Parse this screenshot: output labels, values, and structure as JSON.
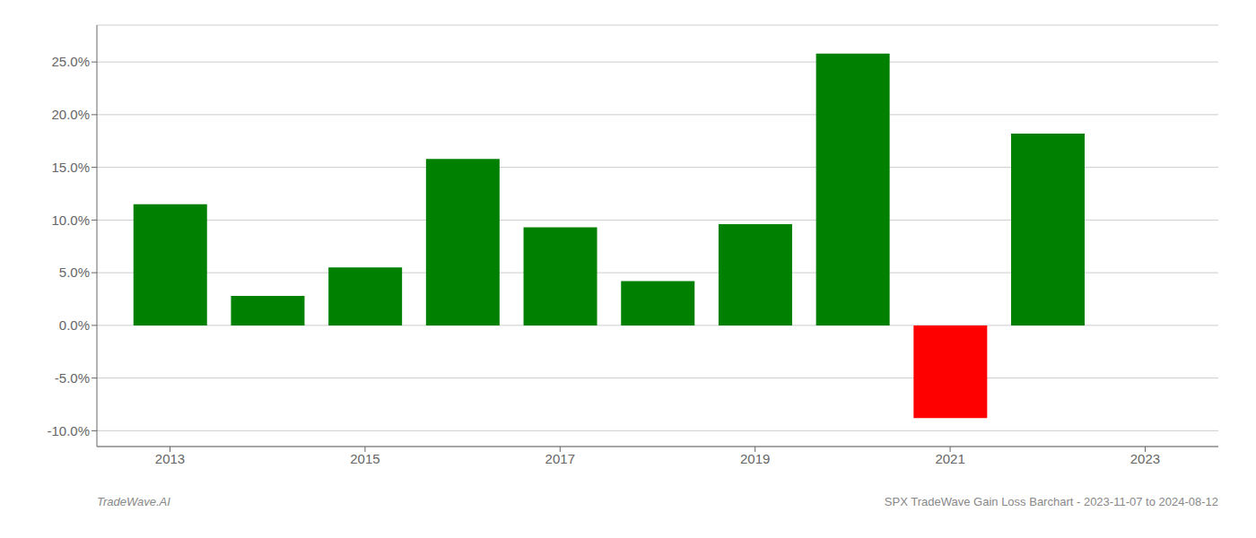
{
  "chart_data": {
    "type": "bar",
    "title": "SPX TradeWave Gain Loss Barchart - 2023-11-07 to 2024-08-12",
    "annotations": [
      "TradeWave.AI"
    ],
    "x": [
      2013,
      2014,
      2015,
      2016,
      2017,
      2018,
      2019,
      2020,
      2021,
      2022
    ],
    "values": [
      0.115,
      0.028,
      0.055,
      0.158,
      0.093,
      0.042,
      0.096,
      0.258,
      -0.088,
      0.182
    ],
    "colors": [
      "#008000",
      "#008000",
      "#008000",
      "#008000",
      "#008000",
      "#008000",
      "#008000",
      "#008000",
      "#FF0000",
      "#008000"
    ],
    "xlim": [
      2012.25,
      2023.75
    ],
    "xticks": [
      2013,
      2015,
      2017,
      2019,
      2021,
      2023
    ],
    "ylim": [
      -0.115,
      0.285
    ],
    "yticks": [
      {
        "value": -0.1,
        "label": "-10.0%"
      },
      {
        "value": -0.05,
        "label": "-5.0%"
      },
      {
        "value": 0.0,
        "label": "0.0%"
      },
      {
        "value": 0.05,
        "label": "5.0%"
      },
      {
        "value": 0.1,
        "label": "10.0%"
      },
      {
        "value": 0.15,
        "label": "15.0%"
      },
      {
        "value": 0.2,
        "label": "20.0%"
      },
      {
        "value": 0.25,
        "label": "25.0%"
      }
    ],
    "grid": true
  }
}
